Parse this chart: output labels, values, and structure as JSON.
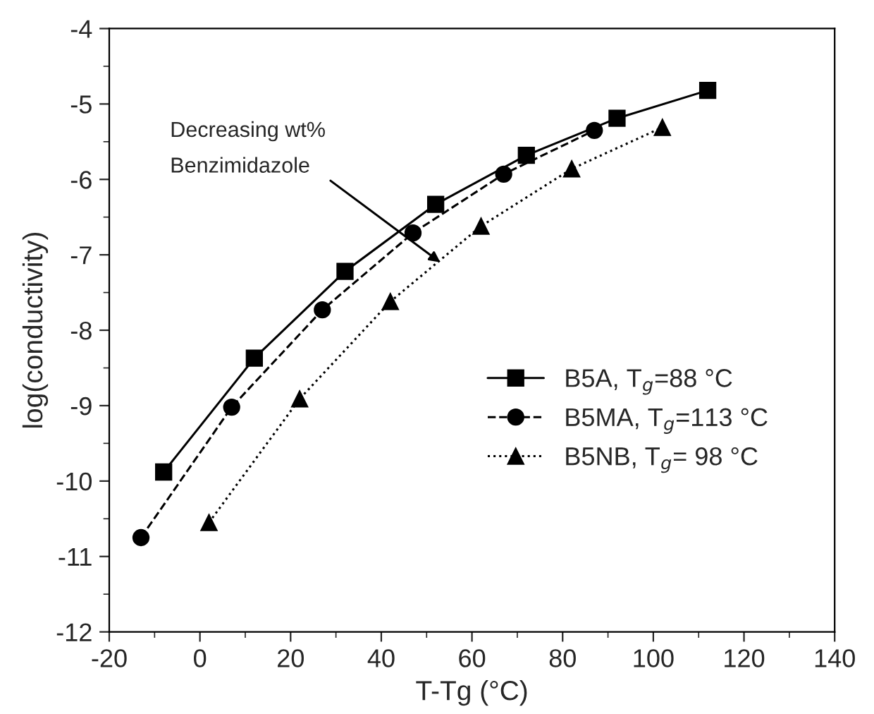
{
  "chart_data": {
    "type": "line",
    "xlabel": "T-Tg (°C)",
    "ylabel": "log(conductivity)",
    "xlim": [
      -20,
      140
    ],
    "xticks": [
      -20,
      0,
      20,
      40,
      60,
      80,
      100,
      120,
      140
    ],
    "ylim": [
      -12,
      -4
    ],
    "yticks": [
      -12,
      -11,
      -10,
      -9,
      -8,
      -7,
      -6,
      -5,
      -4
    ],
    "grid": false,
    "legend": "right",
    "annotations": [
      {
        "text": "Decreasing wt%\nBenzimidazole",
        "x": 53,
        "y": -7.1
      }
    ],
    "series": [
      {
        "name": "B5A, T$_{g}$=88 °C",
        "color": "#000000",
        "marker": "square",
        "line_style": "solid",
        "x": [
          -8,
          12,
          32,
          52,
          72,
          92,
          112
        ],
        "values": [
          -9.88,
          -8.37,
          -7.22,
          -6.33,
          -5.68,
          -5.19,
          -4.82
        ]
      },
      {
        "name": "B5MA, T$_{g}$=113 °C",
        "color": "#000000",
        "marker": "circle",
        "line_style": "dashed",
        "x": [
          -13,
          7,
          27,
          47,
          67,
          87
        ],
        "values": [
          -10.75,
          -9.02,
          -7.73,
          -6.71,
          -5.93,
          -5.35
        ]
      },
      {
        "name": "B5NB, T$_{g}$= 98 °C",
        "color": "#000000",
        "marker": "triangle",
        "line_style": "dotted",
        "x": [
          2,
          22,
          42,
          62,
          82,
          102
        ],
        "values": [
          -10.55,
          -8.91,
          -7.62,
          -6.62,
          -5.86,
          -5.31
        ]
      }
    ]
  }
}
